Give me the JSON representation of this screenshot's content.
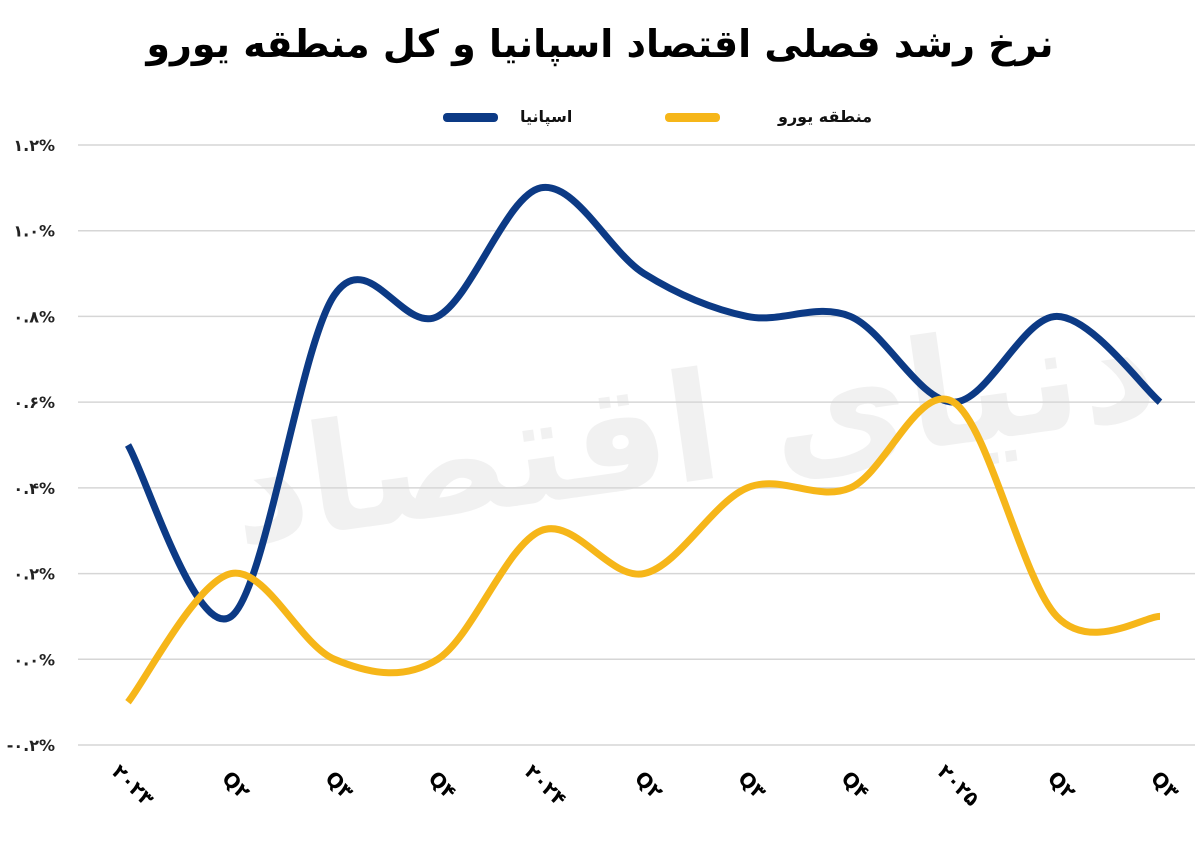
{
  "chart_data": {
    "type": "line",
    "title": "نرخ رشد فصلی اقتصاد اسپانیا و کل منطقه یورو",
    "xlabel": "",
    "ylabel": "",
    "categories": [
      "۲۰۲۳",
      "Q۲",
      "Q۳",
      "Q۴",
      "۲۰۲۴",
      "Q۲",
      "Q۳",
      "Q۴",
      "۲۰۲۵",
      "Q۲",
      "Q۳"
    ],
    "yticks": [
      -0.2,
      0.0,
      0.2,
      0.4,
      0.6,
      0.8,
      1.0,
      1.2
    ],
    "ytick_labels": [
      "-۰.۲%",
      "۰.۰%",
      "۰.۲%",
      "۰.۴%",
      "۰.۶%",
      "۰.۸%",
      "۱.۰%",
      "۱.۲%"
    ],
    "ylim": [
      -0.2,
      1.2
    ],
    "grid": true,
    "legend_position": "top",
    "smoothed": true,
    "watermark": "دنیای اقتصاد",
    "series": [
      {
        "name": "اسپانیا",
        "color": "#0c3a85",
        "values": [
          0.5,
          0.1,
          0.85,
          0.8,
          1.1,
          0.9,
          0.8,
          0.8,
          0.6,
          0.8,
          0.6
        ]
      },
      {
        "name": "منطقه یورو",
        "color": "#f6b619",
        "values": [
          -0.1,
          0.2,
          0.0,
          0.0,
          0.3,
          0.2,
          0.4,
          0.4,
          0.6,
          0.1,
          0.1
        ]
      }
    ]
  }
}
